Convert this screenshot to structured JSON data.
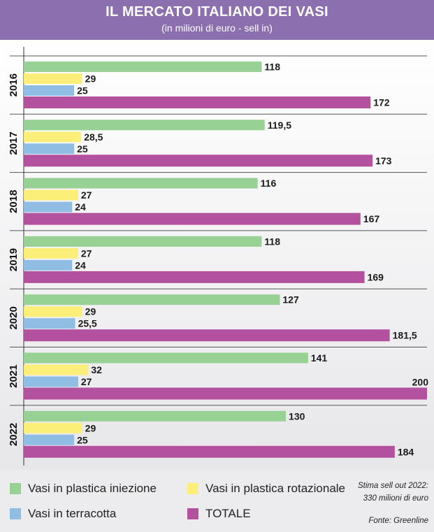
{
  "header": {
    "title": "IL MERCATO ITALIANO DEI VASI",
    "subtitle": "(in milioni di euro - sell in)"
  },
  "colors": {
    "header_bg": "#8b6fae",
    "iniezione": "#98d194",
    "rotazionale": "#fbef79",
    "terracotta": "#8fbde3",
    "totale": "#b3519e"
  },
  "chart_data": {
    "type": "bar",
    "orientation": "horizontal",
    "categories": [
      "2016",
      "2017",
      "2018",
      "2019",
      "2020",
      "2021",
      "2022"
    ],
    "series": [
      {
        "name": "Vasi in plastica iniezione",
        "values": [
          118,
          119.5,
          116,
          118,
          127,
          141,
          130
        ],
        "labels": [
          "118",
          "119,5",
          "116",
          "118",
          "127",
          "141",
          "130"
        ]
      },
      {
        "name": "Vasi in plastica rotazionale",
        "values": [
          29,
          28.5,
          27,
          27,
          29,
          32,
          29
        ],
        "labels": [
          "29",
          "28,5",
          "27",
          "27",
          "29",
          "32",
          "29"
        ]
      },
      {
        "name": "Vasi in terracotta",
        "values": [
          25,
          25,
          24,
          24,
          25.5,
          27,
          25
        ],
        "labels": [
          "25",
          "25",
          "24",
          "24",
          "25,5",
          "27",
          "25"
        ]
      },
      {
        "name": "TOTALE",
        "values": [
          172,
          173,
          167,
          169,
          181.5,
          200,
          184
        ],
        "labels": [
          "172",
          "173",
          "167",
          "169",
          "181,5",
          "200",
          "184"
        ]
      }
    ],
    "xlim": [
      0,
      200
    ],
    "grid": false,
    "legend": "bottom"
  },
  "legend": {
    "iniezione": "Vasi in plastica iniezione",
    "rotazionale": "Vasi in plastica rotazionale",
    "terracotta": "Vasi in terracotta",
    "totale": "TOTALE"
  },
  "notes": {
    "stima_line1": "Stima sell out 2022:",
    "stima_line2": "330 milioni di euro",
    "fonte": "Fonte: Greenline"
  }
}
